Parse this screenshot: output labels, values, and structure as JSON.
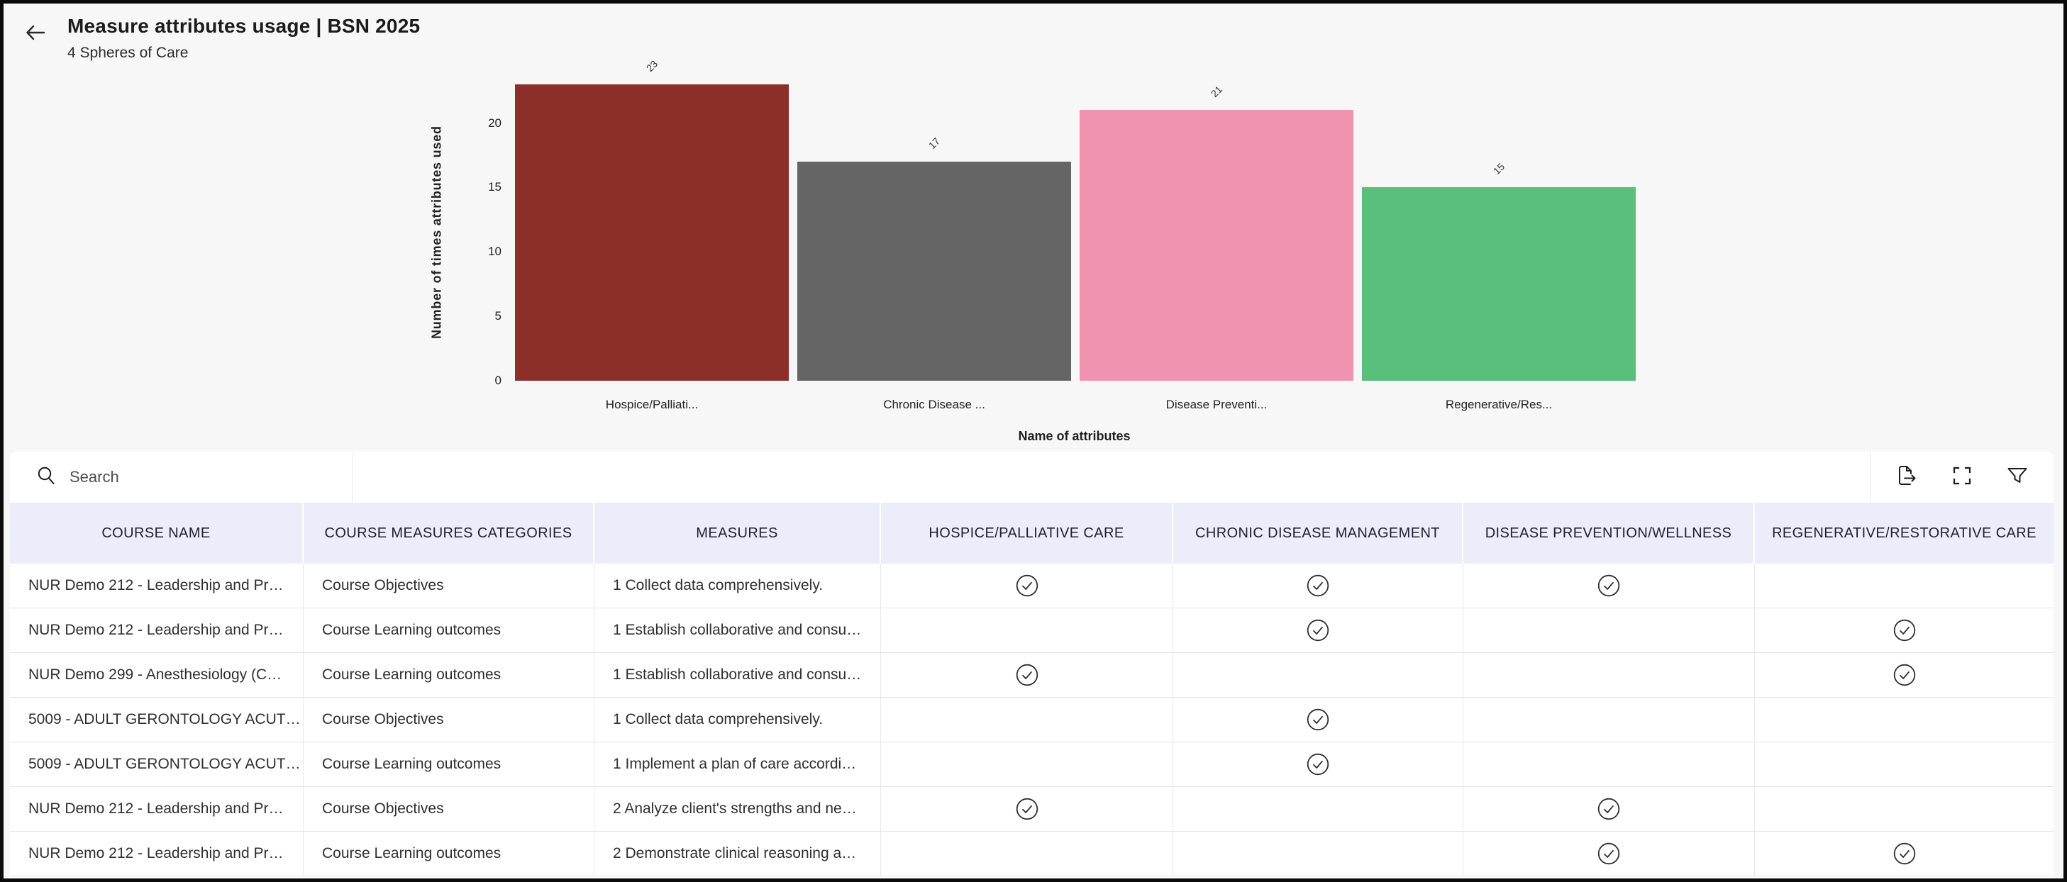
{
  "header": {
    "title": "Measure attributes usage | BSN 2025",
    "subtitle": "4 Spheres of Care",
    "back_icon": "back-arrow-icon"
  },
  "chart_data": {
    "type": "bar",
    "title": "",
    "categories": [
      "Hospice/Palliati...",
      "Chronic Disease ...",
      "Disease Preventi...",
      "Regenerative/Res..."
    ],
    "values": [
      23,
      17,
      21,
      15
    ],
    "colors": [
      "#8c2f29",
      "#656565",
      "#ef93b1",
      "#59bf7a"
    ],
    "xlabel": "Name of attributes",
    "ylabel": "Number of times attributes used",
    "yticks": [
      0,
      5,
      10,
      15,
      20
    ],
    "ylim": [
      0,
      23
    ],
    "grid": false,
    "legend": "none",
    "bar_value_labels_rotated_45deg": true
  },
  "toolbar": {
    "search_placeholder": "Search",
    "icons": [
      "search-icon",
      "export-icon",
      "maximize-icon",
      "filter-icon"
    ]
  },
  "table": {
    "columns": [
      "COURSE NAME",
      "COURSE MEASURES CATEGORIES",
      "MEASURES",
      "HOSPICE/PALLIATIVE CARE",
      "CHRONIC DISEASE MANAGEMENT",
      "DISEASE PREVENTION/WELLNESS",
      "REGENERATIVE/RESTORATIVE CARE"
    ],
    "rows": [
      {
        "course": "NUR Demo 212 - Leadership and Pr…",
        "category": "Course Objectives",
        "measure": "1 Collect data comprehensively.",
        "checks": [
          true,
          true,
          true,
          false
        ]
      },
      {
        "course": "NUR Demo 212 - Leadership and Pr…",
        "category": "Course Learning outcomes",
        "measure": "1 Establish collaborative and consu…",
        "checks": [
          false,
          true,
          false,
          true
        ]
      },
      {
        "course": "NUR Demo 299 - Anesthesiology (C…",
        "category": "Course Learning outcomes",
        "measure": "1 Establish collaborative and consu…",
        "checks": [
          true,
          false,
          false,
          true
        ]
      },
      {
        "course": "5009 - ADULT GERONTOLOGY ACUT…",
        "category": "Course Objectives",
        "measure": "1 Collect data comprehensively.",
        "checks": [
          false,
          true,
          false,
          false
        ]
      },
      {
        "course": "5009 - ADULT GERONTOLOGY ACUT…",
        "category": "Course Learning outcomes",
        "measure": "1 Implement a plan of care accordi…",
        "checks": [
          false,
          true,
          false,
          false
        ]
      },
      {
        "course": "NUR Demo 212 - Leadership and Pr…",
        "category": "Course Objectives",
        "measure": "2 Analyze client's strengths and ne…",
        "checks": [
          true,
          false,
          true,
          false
        ]
      },
      {
        "course": "NUR Demo 212 - Leadership and Pr…",
        "category": "Course Learning outcomes",
        "measure": "2 Demonstrate clinical reasoning a…",
        "checks": [
          false,
          false,
          true,
          true
        ]
      }
    ]
  },
  "colors": {
    "page_background": "#f7f7f7",
    "panel_background": "#ffffff",
    "table_header_background": "#edecfb",
    "row_border": "#e3e3e3",
    "checkmark": "#2e2e2e",
    "frame_border": "#0b0b0b"
  }
}
